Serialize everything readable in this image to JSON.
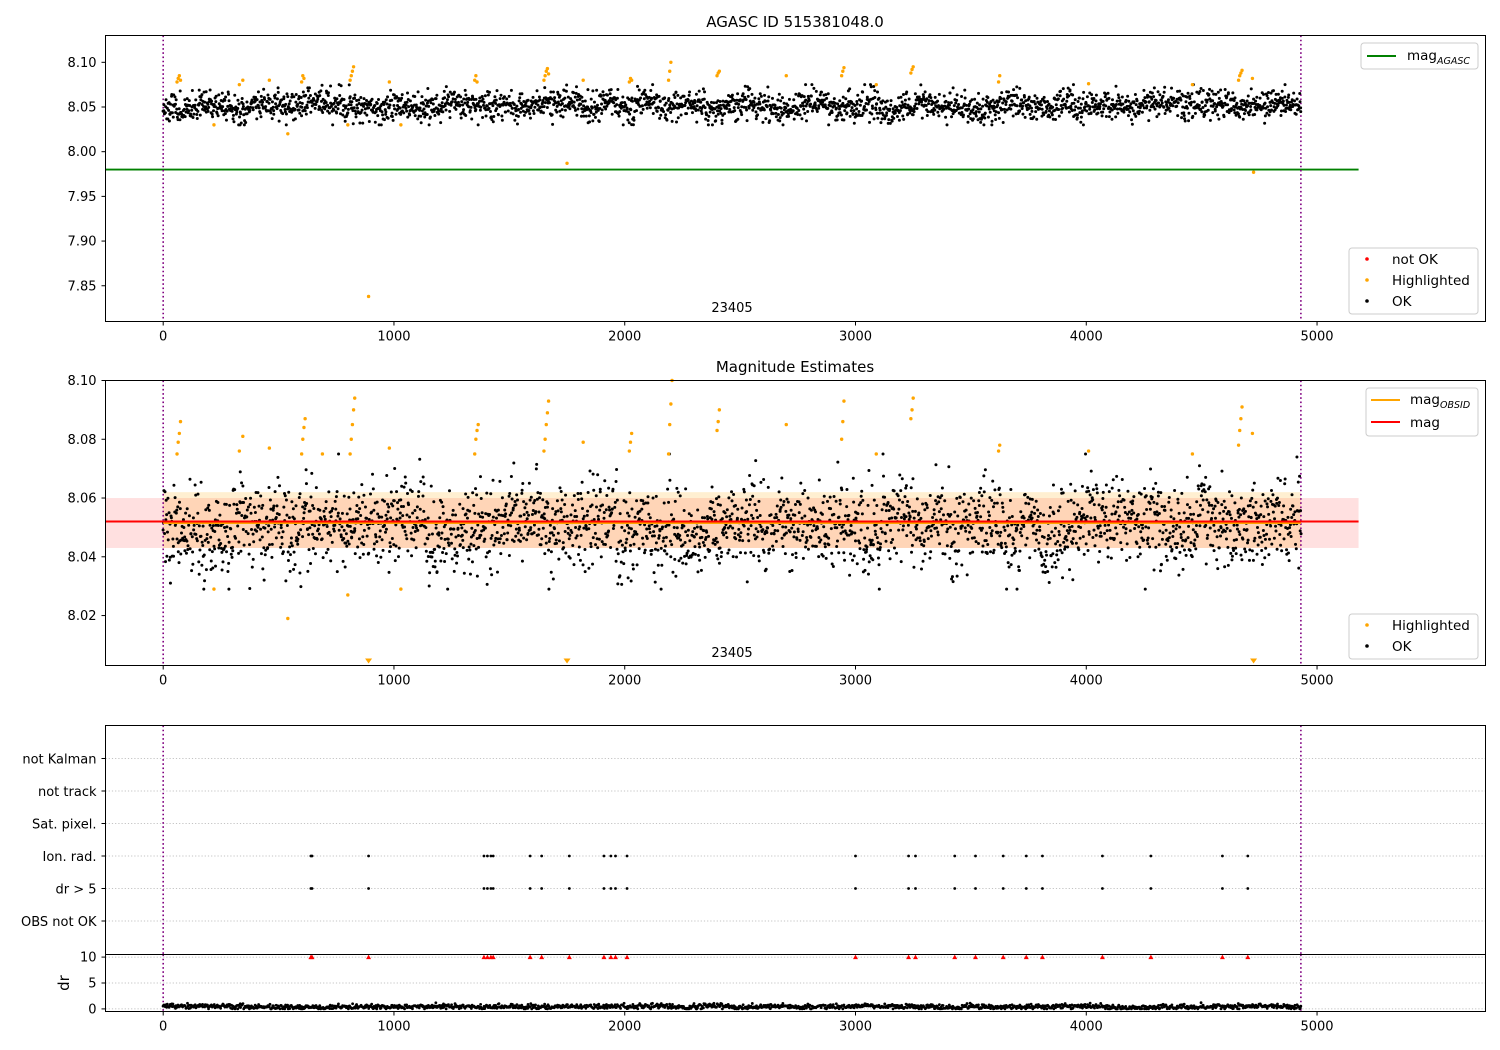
{
  "chart_data": [
    {
      "type": "scatter",
      "title": "AGASC ID 515381048.0",
      "xlim": [
        -250,
        5730
      ],
      "ylim": [
        7.81,
        8.13
      ],
      "xticks": [
        0,
        1000,
        2000,
        3000,
        4000,
        5000
      ],
      "yticks": [
        7.85,
        7.9,
        7.95,
        8.0,
        8.05,
        8.1
      ],
      "ytick_labels": [
        "7.85",
        "7.90",
        "7.95",
        "8.00",
        "8.05",
        "8.10"
      ],
      "annotation": "23405",
      "vlines": [
        0,
        4930
      ],
      "hlines": [
        {
          "name": "mag_AGASC",
          "y": 7.98,
          "x_range": [
            -250,
            5180
          ],
          "color": "#008000"
        }
      ],
      "series": [
        {
          "name": "not OK",
          "color": "#ff0000",
          "points": []
        },
        {
          "name": "Highlighted",
          "color": "#ffa500",
          "points": [
            [
              60,
              8.078
            ],
            [
              65,
              8.082
            ],
            [
              70,
              8.085
            ],
            [
              75,
              8.08
            ],
            [
              220,
              8.03
            ],
            [
              330,
              8.075
            ],
            [
              345,
              8.08
            ],
            [
              460,
              8.08
            ],
            [
              540,
              8.02
            ],
            [
              600,
              8.078
            ],
            [
              605,
              8.085
            ],
            [
              610,
              8.082
            ],
            [
              800,
              8.03
            ],
            [
              810,
              8.08
            ],
            [
              815,
              8.085
            ],
            [
              820,
              8.09
            ],
            [
              825,
              8.095
            ],
            [
              890,
              7.838
            ],
            [
              980,
              8.078
            ],
            [
              1030,
              8.03
            ],
            [
              1350,
              8.08
            ],
            [
              1355,
              8.085
            ],
            [
              1360,
              8.078
            ],
            [
              1650,
              8.08
            ],
            [
              1655,
              8.085
            ],
            [
              1660,
              8.09
            ],
            [
              1665,
              8.093
            ],
            [
              1670,
              8.087
            ],
            [
              1750,
              7.987
            ],
            [
              1820,
              8.08
            ],
            [
              2020,
              8.078
            ],
            [
              2025,
              8.082
            ],
            [
              2030,
              8.08
            ],
            [
              2190,
              8.08
            ],
            [
              2195,
              8.09
            ],
            [
              2200,
              8.1
            ],
            [
              2400,
              8.085
            ],
            [
              2405,
              8.088
            ],
            [
              2410,
              8.09
            ],
            [
              2700,
              8.085
            ],
            [
              2940,
              8.085
            ],
            [
              2945,
              8.09
            ],
            [
              2950,
              8.094
            ],
            [
              3090,
              8.075
            ],
            [
              3240,
              8.088
            ],
            [
              3245,
              8.092
            ],
            [
              3250,
              8.095
            ],
            [
              3620,
              8.078
            ],
            [
              3625,
              8.085
            ],
            [
              4010,
              8.076
            ],
            [
              4460,
              8.075
            ],
            [
              4660,
              8.08
            ],
            [
              4665,
              8.085
            ],
            [
              4670,
              8.088
            ],
            [
              4675,
              8.091
            ],
            [
              4720,
              8.082
            ],
            [
              4725,
              7.977
            ]
          ]
        },
        {
          "name": "OK",
          "color": "#000000",
          "generated": {
            "x_range": [
              0,
              4930
            ],
            "n": 2600,
            "center": 8.052,
            "noise": 0.008
          }
        }
      ],
      "legends": [
        {
          "placement": "top-right",
          "entries": [
            {
              "label_main": "mag",
              "label_sub": "AGASC",
              "kind": "line",
              "color": "#008000"
            }
          ]
        },
        {
          "placement": "bottom-right",
          "entries": [
            {
              "label": "not OK",
              "kind": "dot",
              "color": "#ff0000"
            },
            {
              "label": "Highlighted",
              "kind": "dot",
              "color": "#ffa500"
            },
            {
              "label": "OK",
              "kind": "dot",
              "color": "#000000"
            }
          ]
        }
      ]
    },
    {
      "type": "scatter",
      "title": "Magnitude Estimates",
      "xlim": [
        -250,
        5730
      ],
      "ylim": [
        8.003,
        8.1
      ],
      "xticks": [
        0,
        1000,
        2000,
        3000,
        4000,
        5000
      ],
      "yticks": [
        8.02,
        8.04,
        8.06,
        8.08,
        8.1
      ],
      "ytick_labels": [
        "8.02",
        "8.04",
        "8.06",
        "8.08",
        "8.10"
      ],
      "annotation": "23405",
      "vlines": [
        0,
        4930
      ],
      "bands": [
        {
          "y0": 8.043,
          "y1": 8.06,
          "x_range": [
            -250,
            5180
          ],
          "color": "#ff0000",
          "opacity": 0.12
        },
        {
          "y0": 8.043,
          "y1": 8.062,
          "x_range": [
            0,
            4930
          ],
          "color": "#ffa500",
          "opacity": 0.18
        }
      ],
      "hlines": [
        {
          "name": "mag_OBSID",
          "y": 8.0515,
          "x_range": [
            0,
            4930
          ],
          "color": "#ffa500"
        },
        {
          "name": "mag",
          "y": 8.052,
          "x_range": [
            -250,
            5180
          ],
          "color": "#ff0000"
        }
      ],
      "series": [
        {
          "name": "Highlighted",
          "color": "#ffa500",
          "points": [
            [
              60,
              8.075
            ],
            [
              65,
              8.079
            ],
            [
              70,
              8.082
            ],
            [
              75,
              8.086
            ],
            [
              220,
              8.029
            ],
            [
              330,
              8.076
            ],
            [
              345,
              8.081
            ],
            [
              460,
              8.077
            ],
            [
              540,
              8.019
            ],
            [
              600,
              8.075
            ],
            [
              605,
              8.08
            ],
            [
              610,
              8.084
            ],
            [
              615,
              8.087
            ],
            [
              690,
              8.075
            ],
            [
              800,
              8.027
            ],
            [
              810,
              8.075
            ],
            [
              815,
              8.08
            ],
            [
              820,
              8.085
            ],
            [
              825,
              8.09
            ],
            [
              830,
              8.094
            ],
            [
              980,
              8.077
            ],
            [
              1030,
              8.029
            ],
            [
              1350,
              8.075
            ],
            [
              1355,
              8.08
            ],
            [
              1360,
              8.083
            ],
            [
              1365,
              8.085
            ],
            [
              1650,
              8.076
            ],
            [
              1655,
              8.08
            ],
            [
              1660,
              8.085
            ],
            [
              1665,
              8.089
            ],
            [
              1670,
              8.093
            ],
            [
              1820,
              8.079
            ],
            [
              2020,
              8.076
            ],
            [
              2025,
              8.079
            ],
            [
              2030,
              8.082
            ],
            [
              2190,
              8.075
            ],
            [
              2195,
              8.085
            ],
            [
              2200,
              8.092
            ],
            [
              2205,
              8.1
            ],
            [
              2400,
              8.083
            ],
            [
              2405,
              8.086
            ],
            [
              2410,
              8.09
            ],
            [
              2700,
              8.085
            ],
            [
              2940,
              8.08
            ],
            [
              2945,
              8.086
            ],
            [
              2950,
              8.093
            ],
            [
              3090,
              8.075
            ],
            [
              3240,
              8.087
            ],
            [
              3245,
              8.09
            ],
            [
              3250,
              8.094
            ],
            [
              3620,
              8.076
            ],
            [
              3625,
              8.078
            ],
            [
              4010,
              8.076
            ],
            [
              4460,
              8.075
            ],
            [
              4660,
              8.078
            ],
            [
              4665,
              8.083
            ],
            [
              4670,
              8.087
            ],
            [
              4675,
              8.091
            ],
            [
              4720,
              8.082
            ]
          ]
        },
        {
          "name": "Highlighted (off scale)",
          "color": "#ffa500",
          "marker": "down-triangle",
          "points": [
            [
              890,
              8.003
            ],
            [
              1750,
              8.003
            ],
            [
              4725,
              8.003
            ]
          ]
        },
        {
          "name": "OK",
          "color": "#000000",
          "generated": {
            "x_range": [
              0,
              4930
            ],
            "n": 2600,
            "center": 8.051,
            "noise": 0.0075
          }
        }
      ],
      "legends": [
        {
          "placement": "top-right",
          "entries": [
            {
              "label_main": "mag",
              "label_sub": "OBSID",
              "kind": "line",
              "color": "#ffa500"
            },
            {
              "label": "mag",
              "kind": "line",
              "color": "#ff0000"
            }
          ]
        },
        {
          "placement": "bottom-right",
          "entries": [
            {
              "label": "Highlighted",
              "kind": "dot",
              "color": "#ffa500"
            },
            {
              "label": "OK",
              "kind": "dot",
              "color": "#000000"
            }
          ]
        }
      ]
    },
    {
      "type": "scatter",
      "title": "",
      "xlim": [
        -250,
        5730
      ],
      "categories": [
        "not Kalman",
        "not track",
        "Sat. pixel.",
        "Ion. rad.",
        "dr > 5",
        "OBS not OK"
      ],
      "vlines": [
        0,
        4930
      ],
      "series": [
        {
          "name": "Ion. rad.",
          "color": "#000000",
          "x": [
            640,
            645,
            890,
            1390,
            1405,
            1420,
            1430,
            1590,
            1640,
            1760,
            1910,
            1940,
            1960,
            2010,
            3000,
            3230,
            3260,
            3430,
            3520,
            3640,
            3740,
            3810,
            4070,
            4280,
            4590,
            4700
          ]
        },
        {
          "name": "dr > 5",
          "color": "#000000",
          "x": [
            640,
            645,
            890,
            1390,
            1405,
            1420,
            1430,
            1590,
            1640,
            1760,
            1910,
            1940,
            1960,
            2010,
            3000,
            3230,
            3260,
            3430,
            3520,
            3640,
            3740,
            3810,
            4070,
            4280,
            4590,
            4700
          ]
        }
      ]
    },
    {
      "type": "scatter",
      "title": "",
      "xlim": [
        -250,
        5730
      ],
      "ylim": [
        -0.5,
        10.5
      ],
      "ylabel": "dr",
      "xticks": [
        0,
        1000,
        2000,
        3000,
        4000,
        5000
      ],
      "yticks": [
        0,
        5,
        10
      ],
      "ytick_labels": [
        "0",
        "5",
        "10"
      ],
      "vlines": [
        0,
        4930
      ],
      "series": [
        {
          "name": "dr > 5 (clipped)",
          "color": "#ff0000",
          "marker": "up-triangle",
          "y": 10,
          "x": [
            640,
            645,
            890,
            1390,
            1405,
            1420,
            1430,
            1590,
            1640,
            1760,
            1910,
            1940,
            1960,
            2010,
            3000,
            3230,
            3260,
            3430,
            3520,
            3640,
            3740,
            3810,
            4070,
            4280,
            4590,
            4700
          ]
        },
        {
          "name": "dr",
          "color": "#000000",
          "generated": {
            "x_range": [
              0,
              4930
            ],
            "n": 1600,
            "center": 0.45,
            "noise": 0.25
          }
        }
      ]
    }
  ]
}
